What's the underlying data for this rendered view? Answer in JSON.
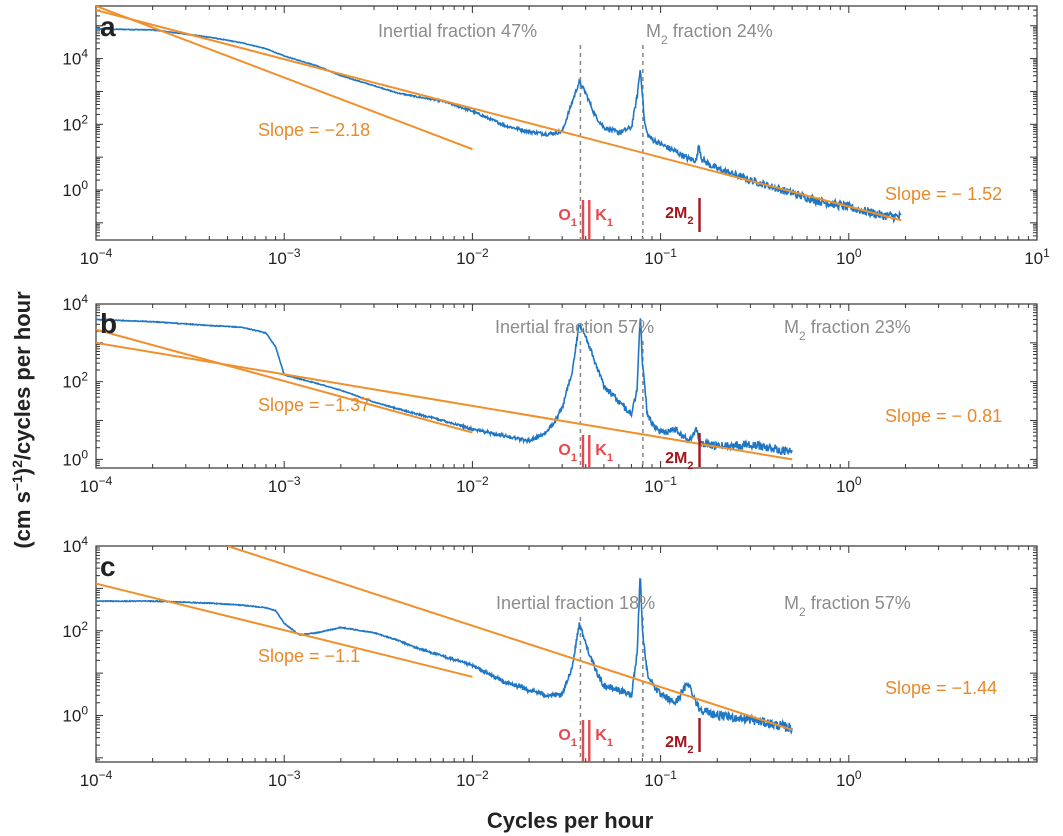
{
  "colors": {
    "spectrum": "#1f77c4",
    "fit": "#f0902d",
    "annotation": "#8c8c8c",
    "slope_text": "#e8892a",
    "diurnal_tide": "#e8474d",
    "overtide": "#a3141c",
    "frame": "#333333"
  },
  "labels": {
    "xlabel": "Cycles per hour",
    "ylabel_main": "(cm s",
    "ylabel_exp1": "−1",
    "ylabel_mid": ")",
    "ylabel_exp2": "2",
    "ylabel_tail": "/cycles per hour"
  },
  "tides": {
    "O1": {
      "name": "O",
      "sub": "1",
      "freq": 0.0387
    },
    "K1": {
      "name": "K",
      "sub": "1",
      "freq": 0.0418
    },
    "M2": {
      "name": "M",
      "sub": "2",
      "freq": 0.0805
    },
    "twoM2": {
      "name": "2M",
      "sub": "2",
      "freq": 0.161
    }
  },
  "tick_text": {
    "base": "10"
  },
  "chart_data": [
    {
      "panel": "a",
      "type": "line",
      "scale": "log-log",
      "xlim": [
        0.0001,
        10
      ],
      "ylim": [
        0.03,
        400000
      ],
      "xticks": [
        {
          "base": "10",
          "exp": "−4",
          "v": 0.0001
        },
        {
          "base": "10",
          "exp": "−3",
          "v": 0.001
        },
        {
          "base": "10",
          "exp": "−2",
          "v": 0.01
        },
        {
          "base": "10",
          "exp": "−1",
          "v": 0.1
        },
        {
          "base": "10",
          "exp": "0",
          "v": 1
        },
        {
          "base": "10",
          "exp": "1",
          "v": 10
        }
      ],
      "yticks": [
        {
          "base": "10",
          "exp": "0",
          "v": 1
        },
        {
          "base": "10",
          "exp": "2",
          "v": 100
        },
        {
          "base": "10",
          "exp": "4",
          "v": 10000
        }
      ],
      "inertial_freq": 0.0375,
      "inertial_label": "Inertial fraction 47%",
      "m2_label_main": "M",
      "m2_label_sub": "2",
      "m2_label_tail": " fraction 24%",
      "fits": [
        {
          "slope": -2.18,
          "label": "Slope = −2.18",
          "x": [
            0.0001,
            0.01
          ],
          "y": [
            400000,
            17.5
          ]
        },
        {
          "slope": -1.52,
          "label": "Slope = − 1.52",
          "x": [
            0.0001,
            1.9
          ],
          "y": [
            300000,
            0.12
          ]
        }
      ],
      "spectrum": {
        "x": [
          0.0001,
          0.0002,
          0.0004,
          0.0006,
          0.0008,
          0.001,
          0.0015,
          0.002,
          0.003,
          0.004,
          0.005,
          0.007,
          0.01,
          0.015,
          0.02,
          0.025,
          0.03,
          0.034,
          0.037,
          0.04,
          0.045,
          0.05,
          0.06,
          0.07,
          0.075,
          0.078,
          0.08,
          0.082,
          0.085,
          0.09,
          0.1,
          0.12,
          0.14,
          0.155,
          0.16,
          0.165,
          0.18,
          0.2,
          0.3,
          0.5,
          0.7,
          1.0,
          1.5,
          1.9
        ],
        "y": [
          80000,
          75000,
          45000,
          30000,
          20000,
          12000,
          6000,
          3000,
          1500,
          900,
          700,
          500,
          250,
          90,
          60,
          50,
          60,
          500,
          2000,
          900,
          180,
          80,
          55,
          80,
          700,
          5000,
          900,
          120,
          50,
          35,
          25,
          15,
          9,
          8,
          25,
          9,
          6,
          4.5,
          2,
          0.8,
          0.45,
          0.3,
          0.17,
          0.15
        ]
      }
    },
    {
      "panel": "b",
      "type": "line",
      "scale": "log-log",
      "xlim": [
        0.0001,
        10
      ],
      "ylim": [
        0.6,
        10000
      ],
      "xticks": [
        {
          "base": "10",
          "exp": "−4",
          "v": 0.0001
        },
        {
          "base": "10",
          "exp": "−3",
          "v": 0.001
        },
        {
          "base": "10",
          "exp": "−2",
          "v": 0.01
        },
        {
          "base": "10",
          "exp": "−1",
          "v": 0.1
        },
        {
          "base": "10",
          "exp": "0",
          "v": 1
        }
      ],
      "yticks": [
        {
          "base": "10",
          "exp": "0",
          "v": 1
        },
        {
          "base": "10",
          "exp": "2",
          "v": 100
        },
        {
          "base": "10",
          "exp": "4",
          "v": 10000
        }
      ],
      "inertial_freq": 0.0375,
      "inertial_label": "Inertial fraction 57%",
      "m2_label_main": "M",
      "m2_label_sub": "2",
      "m2_label_tail": " fraction 23%",
      "fits": [
        {
          "slope": -1.37,
          "label": "Slope = −1.37",
          "x": [
            0.0001,
            0.01
          ],
          "y": [
            2200,
            4.9
          ]
        },
        {
          "slope": -0.81,
          "label": "Slope = − 0.81",
          "x": [
            0.0001,
            0.5
          ],
          "y": [
            1000,
            1.0
          ]
        }
      ],
      "spectrum": {
        "x": [
          0.0001,
          0.0002,
          0.0004,
          0.0006,
          0.0008,
          0.0009,
          0.001,
          0.0015,
          0.002,
          0.003,
          0.004,
          0.005,
          0.007,
          0.01,
          0.015,
          0.02,
          0.025,
          0.03,
          0.034,
          0.037,
          0.04,
          0.045,
          0.05,
          0.06,
          0.07,
          0.075,
          0.078,
          0.08,
          0.085,
          0.09,
          0.1,
          0.12,
          0.14,
          0.155,
          0.16,
          0.17,
          0.2,
          0.3,
          0.5
        ],
        "y": [
          4000,
          3500,
          2800,
          2500,
          1800,
          800,
          150,
          90,
          60,
          30,
          20,
          15,
          10,
          6,
          4,
          3,
          5,
          20,
          200,
          3000,
          1500,
          300,
          80,
          30,
          15,
          60,
          6000,
          300,
          15,
          8,
          5,
          6,
          3,
          6,
          3,
          2.5,
          2.2,
          2.5,
          1.5
        ]
      }
    },
    {
      "panel": "c",
      "type": "line",
      "scale": "log-log",
      "xlim": [
        0.0001,
        10
      ],
      "ylim": [
        0.08,
        10000
      ],
      "xticks": [
        {
          "base": "10",
          "exp": "−4",
          "v": 0.0001
        },
        {
          "base": "10",
          "exp": "−3",
          "v": 0.001
        },
        {
          "base": "10",
          "exp": "−2",
          "v": 0.01
        },
        {
          "base": "10",
          "exp": "−1",
          "v": 0.1
        },
        {
          "base": "10",
          "exp": "0",
          "v": 1
        }
      ],
      "yticks": [
        {
          "base": "10",
          "exp": "0",
          "v": 1
        },
        {
          "base": "10",
          "exp": "2",
          "v": 100
        },
        {
          "base": "10",
          "exp": "4",
          "v": 10000
        }
      ],
      "inertial_freq": 0.0375,
      "inertial_label": "Inertial fraction 18%",
      "m2_label_main": "M",
      "m2_label_sub": "2",
      "m2_label_tail": " fraction 57%",
      "fits": [
        {
          "slope": -1.1,
          "label": "Slope = −1.1",
          "x": [
            0.0001,
            0.01
          ],
          "y": [
            1300,
            8.2
          ]
        },
        {
          "slope": -1.44,
          "label": "Slope = −1.44",
          "x": [
            0.0005,
            0.5
          ],
          "y": [
            10000,
            0.46
          ]
        }
      ],
      "spectrum": {
        "x": [
          0.0001,
          0.0002,
          0.0004,
          0.0006,
          0.0008,
          0.0009,
          0.001,
          0.0012,
          0.0015,
          0.002,
          0.003,
          0.004,
          0.005,
          0.007,
          0.01,
          0.015,
          0.02,
          0.025,
          0.03,
          0.034,
          0.037,
          0.04,
          0.045,
          0.05,
          0.06,
          0.07,
          0.075,
          0.078,
          0.08,
          0.085,
          0.09,
          0.1,
          0.12,
          0.14,
          0.155,
          0.16,
          0.17,
          0.2,
          0.3,
          0.5
        ],
        "y": [
          500,
          500,
          450,
          400,
          350,
          300,
          150,
          80,
          90,
          120,
          90,
          60,
          40,
          25,
          15,
          6,
          4,
          3,
          3,
          15,
          150,
          50,
          12,
          5,
          4,
          3,
          30,
          2500,
          100,
          10,
          6,
          3,
          2,
          6,
          2,
          1.5,
          1.3,
          1.0,
          0.8,
          0.5
        ]
      }
    }
  ]
}
